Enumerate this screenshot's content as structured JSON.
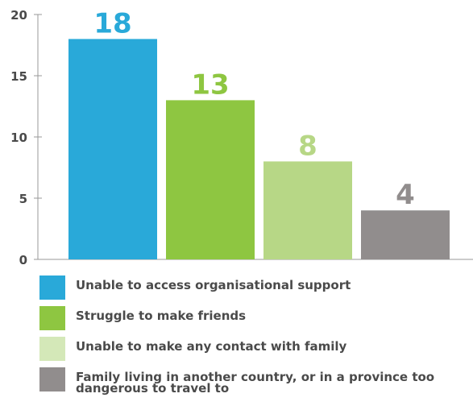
{
  "chart_data": {
    "type": "bar",
    "title": "",
    "xlabel": "",
    "ylabel": "",
    "ylim": [
      0,
      20
    ],
    "yticks": [
      0,
      5,
      10,
      15,
      20
    ],
    "grid": false,
    "legend_position": "bottom",
    "categories": [
      "Unable to access organisational support",
      "Struggle to make friends",
      "Unable to make any contact with family",
      "Family living in another country, or in a province too dangerous to travel to"
    ],
    "values": [
      18,
      13,
      8,
      4
    ],
    "data_labels": [
      "18",
      "13",
      "8",
      "4"
    ],
    "colors": [
      "#29a9d9",
      "#8ec641",
      "#b7d786",
      "#918d8d"
    ],
    "legend_colors": [
      "#29a9d9",
      "#8ec641",
      "#d4e8b8",
      "#918d8d"
    ],
    "label_colors": [
      "#29a9d9",
      "#8ec641",
      "#b7d786",
      "#918d8d"
    ],
    "axis_color": "#999999",
    "tick_label_color": "#4a4a4a"
  }
}
